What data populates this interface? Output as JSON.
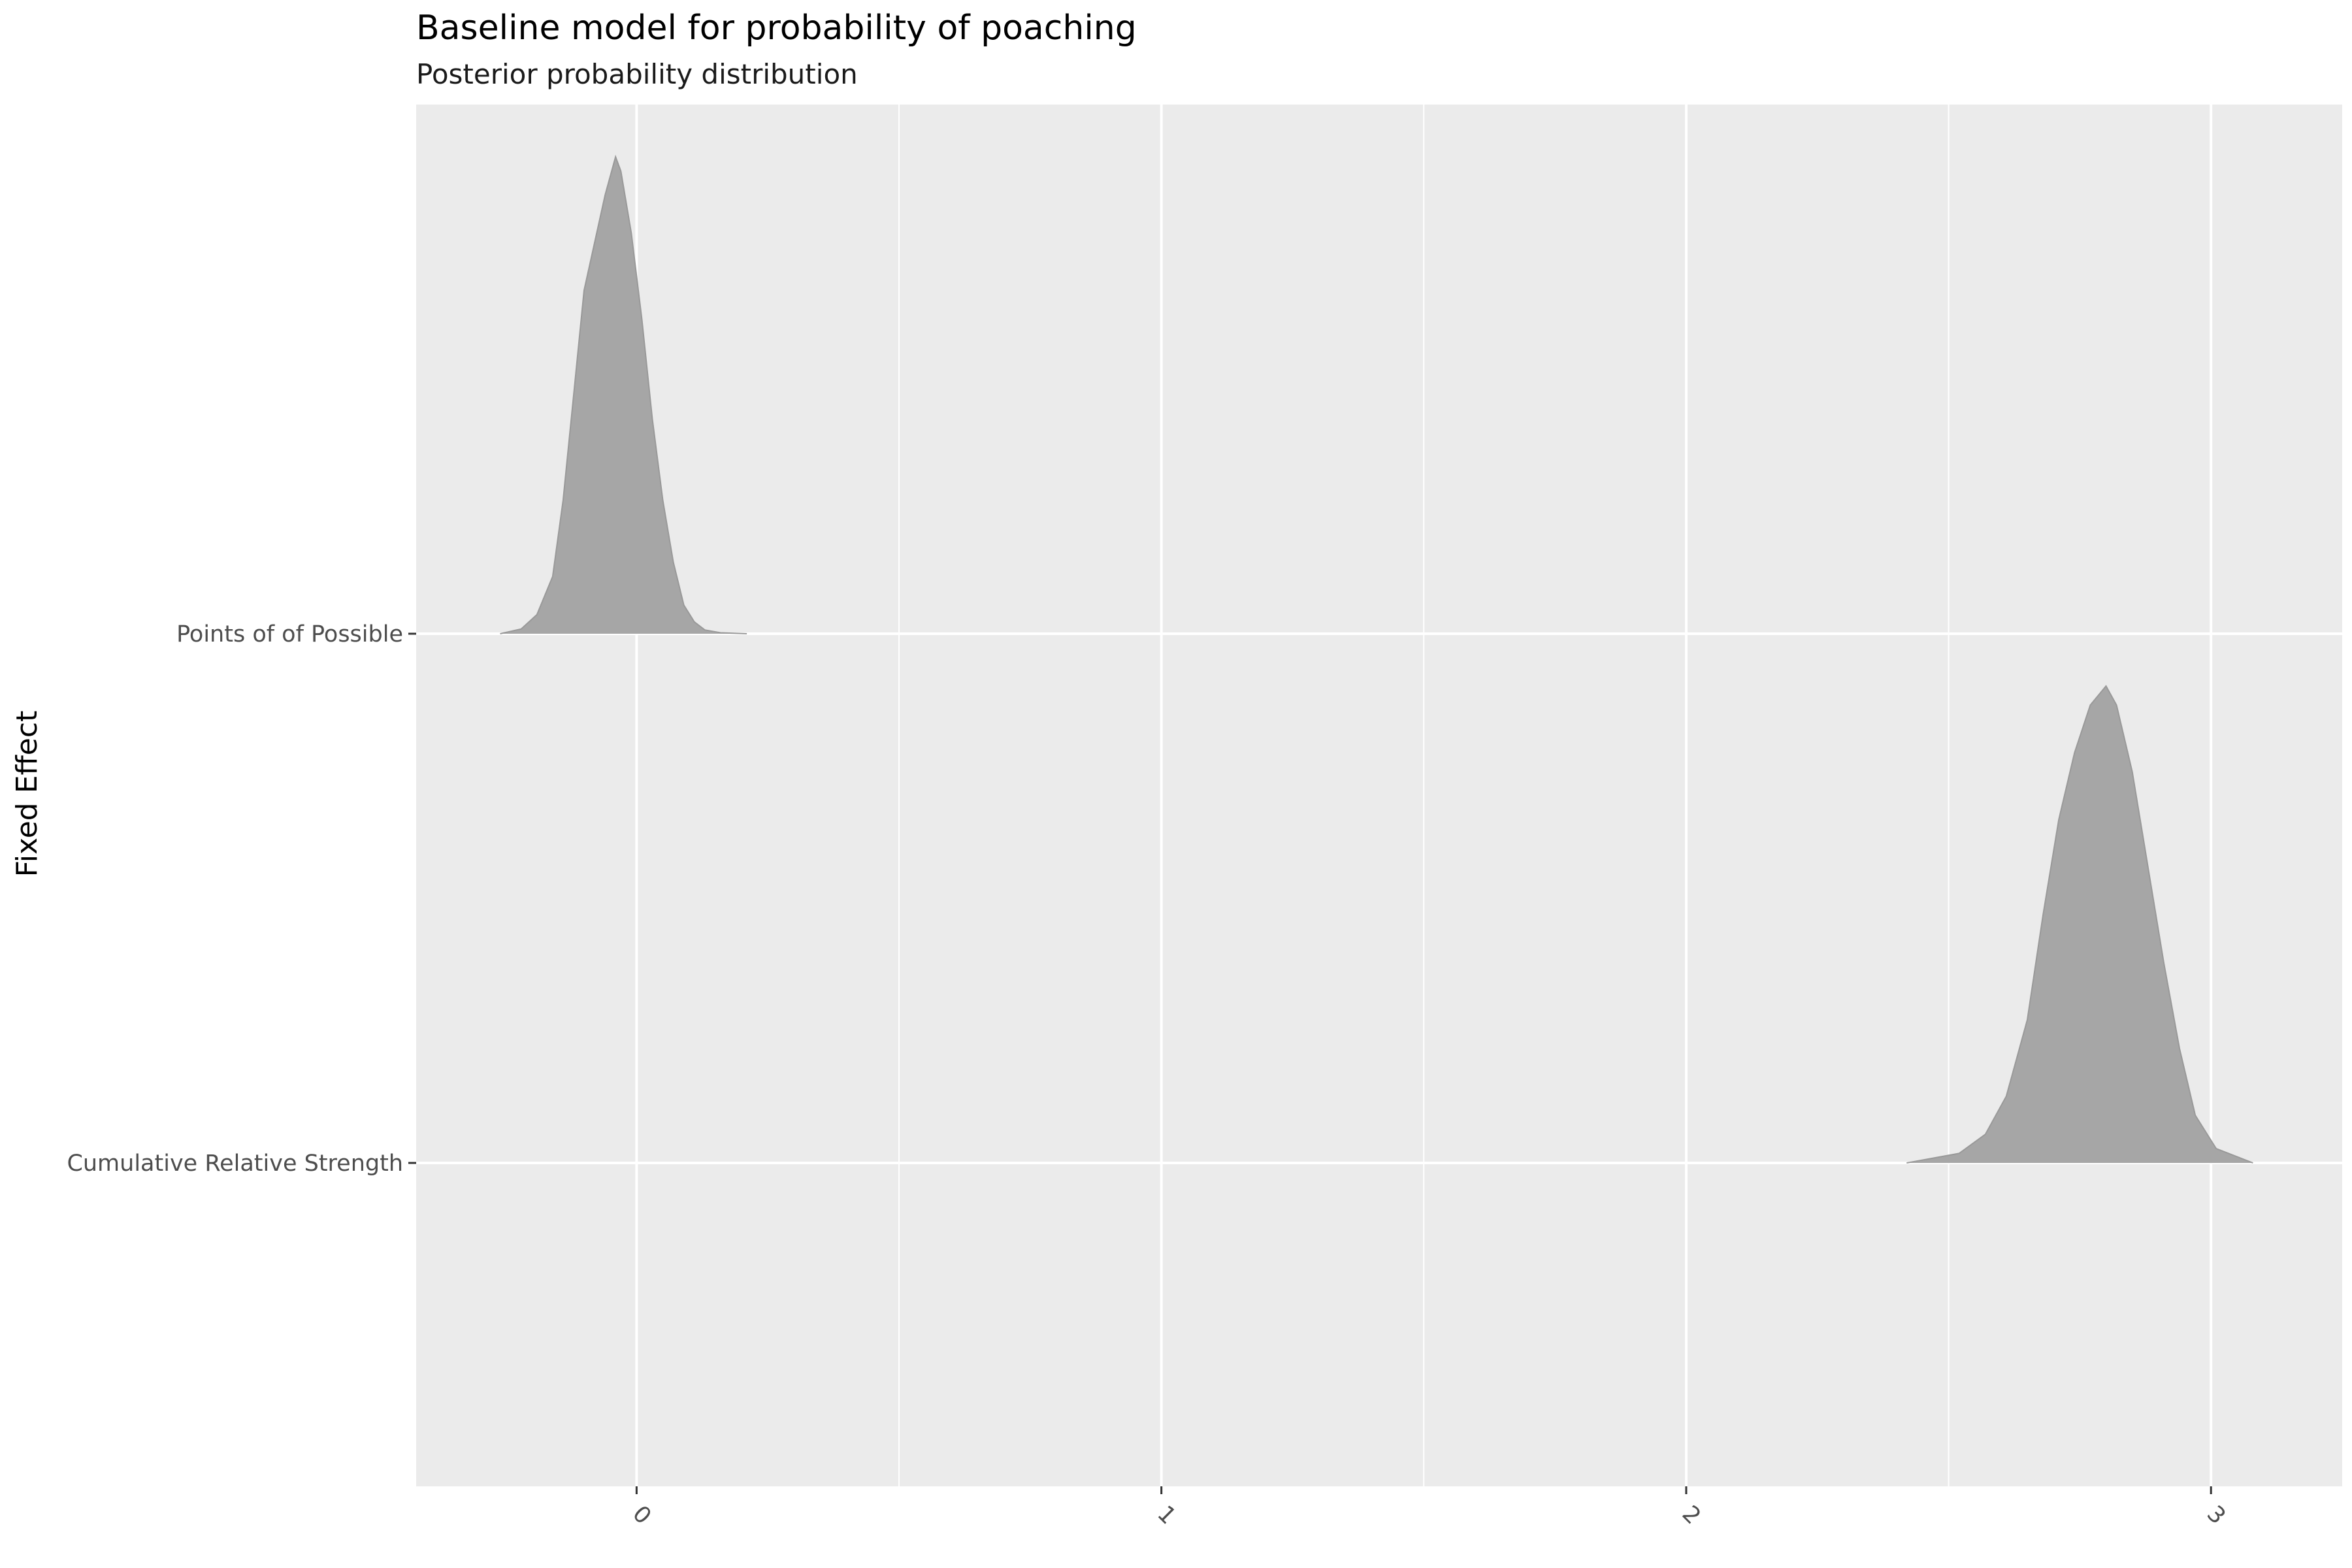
{
  "chart_data": {
    "type": "ridgeline",
    "title": "Baseline model for probability of poaching",
    "subtitle": "Posterior probability distribution",
    "xlabel": "",
    "ylabel": "Fixed Effect",
    "xlim": [
      -0.42,
      3.25
    ],
    "x_ticks": [
      0,
      1,
      2,
      3
    ],
    "x_tick_labels": [
      "0",
      "1",
      "2",
      "3"
    ],
    "grid": true,
    "legend": "none",
    "colors": {
      "panel": "#ebebeb",
      "grid": "#ffffff",
      "fill": "#a6a6a6",
      "tick_text": "#4d4d4d"
    },
    "categories": [
      "Cumulative Relative Strength",
      "Points of of Possible"
    ],
    "series": [
      {
        "label": "Points of of Possible",
        "x": [
          -0.26,
          -0.22,
          -0.19,
          -0.16,
          -0.14,
          -0.12,
          -0.1,
          -0.08,
          -0.06,
          -0.04,
          -0.03,
          -0.01,
          0.01,
          0.03,
          0.05,
          0.07,
          0.09,
          0.11,
          0.13,
          0.16,
          0.21
        ],
        "density": [
          0.0,
          0.01,
          0.04,
          0.12,
          0.28,
          0.5,
          0.72,
          0.82,
          0.92,
          1.0,
          0.97,
          0.84,
          0.66,
          0.45,
          0.28,
          0.15,
          0.06,
          0.025,
          0.008,
          0.002,
          0.0
        ]
      },
      {
        "label": "Cumulative Relative Strength",
        "x": [
          2.42,
          2.52,
          2.57,
          2.61,
          2.65,
          2.68,
          2.71,
          2.74,
          2.77,
          2.8,
          2.82,
          2.85,
          2.88,
          2.91,
          2.94,
          2.97,
          3.01,
          3.08
        ],
        "density": [
          0.0,
          0.02,
          0.06,
          0.14,
          0.3,
          0.52,
          0.72,
          0.86,
          0.96,
          1.0,
          0.96,
          0.82,
          0.62,
          0.42,
          0.24,
          0.1,
          0.03,
          0.0
        ]
      }
    ]
  }
}
